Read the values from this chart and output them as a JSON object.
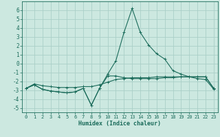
{
  "xlabel": "Humidex (Indice chaleur)",
  "bg_color": "#cce8e0",
  "grid_color": "#aacfc8",
  "line_color": "#1a6b5a",
  "xlim": [
    -0.5,
    23.5
  ],
  "ylim": [
    -5.5,
    7.0
  ],
  "xticks": [
    0,
    1,
    2,
    3,
    4,
    5,
    6,
    7,
    8,
    9,
    10,
    11,
    12,
    13,
    14,
    15,
    16,
    17,
    18,
    19,
    20,
    21,
    22,
    23
  ],
  "yticks": [
    -5,
    -4,
    -3,
    -2,
    -1,
    0,
    1,
    2,
    3,
    4,
    5,
    6
  ],
  "line1_x": [
    0,
    1,
    2,
    3,
    4,
    5,
    6,
    7,
    8,
    9,
    10,
    11,
    12,
    13,
    14,
    15,
    16,
    17,
    18,
    19,
    20,
    21,
    22,
    23
  ],
  "line1_y": [
    -2.8,
    -2.4,
    -2.9,
    -3.1,
    -3.2,
    -3.3,
    -3.2,
    -2.8,
    -4.7,
    -2.8,
    -1.2,
    0.3,
    3.5,
    6.2,
    3.5,
    2.1,
    1.1,
    0.5,
    -0.8,
    -1.2,
    -1.5,
    -1.7,
    -1.8,
    -2.9
  ],
  "line2_x": [
    0,
    1,
    2,
    3,
    4,
    5,
    6,
    7,
    8,
    9,
    10,
    11,
    12,
    13,
    14,
    15,
    16,
    17,
    18,
    19,
    20,
    21,
    22,
    23
  ],
  "line2_y": [
    -2.8,
    -2.4,
    -2.9,
    -3.1,
    -3.2,
    -3.3,
    -3.2,
    -2.8,
    -4.7,
    -2.8,
    -1.4,
    -1.4,
    -1.6,
    -1.7,
    -1.7,
    -1.7,
    -1.7,
    -1.6,
    -1.6,
    -1.5,
    -1.5,
    -1.5,
    -1.5,
    -2.8
  ],
  "line3_x": [
    0,
    1,
    2,
    3,
    4,
    5,
    6,
    7,
    8,
    9,
    10,
    11,
    12,
    13,
    14,
    15,
    16,
    17,
    18,
    19,
    20,
    21,
    22,
    23
  ],
  "line3_y": [
    -2.8,
    -2.3,
    -2.5,
    -2.6,
    -2.7,
    -2.7,
    -2.7,
    -2.6,
    -2.6,
    -2.4,
    -2.1,
    -1.8,
    -1.7,
    -1.6,
    -1.6,
    -1.6,
    -1.5,
    -1.5,
    -1.5,
    -1.5,
    -1.5,
    -1.5,
    -1.5,
    -2.8
  ]
}
